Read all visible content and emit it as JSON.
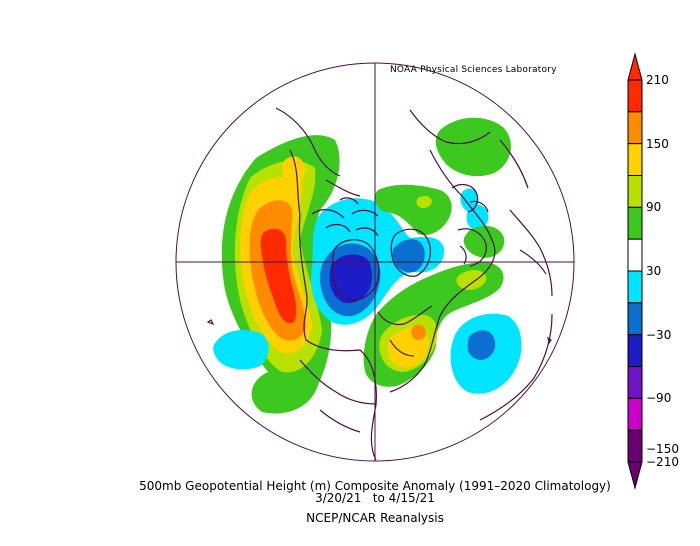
{
  "credit": "NOAA Physical Sciences Laboratory",
  "caption": {
    "line1": "500mb Geopotential Height (m) Composite Anomaly (1991–2020 Climatology)",
    "line2": "3/20/21   to 4/15/21",
    "line3": "NCEP/NCAR Reanalysis"
  },
  "colorbar": {
    "labels": [
      "210",
      "150",
      "90",
      "30",
      "−30",
      "−90",
      "−150",
      "−210"
    ],
    "colors": [
      "#ff2a00",
      "#ff8c00",
      "#ffd100",
      "#b8e000",
      "#3cc81e",
      "#ffffff",
      "#00e5ff",
      "#0a6fd0",
      "#1d1dc8",
      "#6f14c8",
      "#cc00cc",
      "#6b0070"
    ]
  },
  "map": {
    "projection": "polar-stereographic",
    "hemisphere": "northern",
    "palette": {
      "coast": "#4a1040",
      "green": "#3cc81e",
      "yellowgreen": "#b8e000",
      "yellow": "#ffd100",
      "orange": "#ff8c00",
      "red": "#ff2a00",
      "cyan": "#00e5ff",
      "blue": "#0a6fd0",
      "darkblue": "#1d1dc8"
    }
  }
}
